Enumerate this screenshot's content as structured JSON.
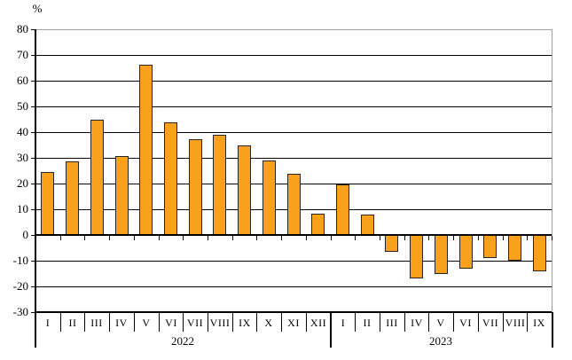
{
  "chart_data": {
    "type": "bar",
    "title": "",
    "ylabel": "%",
    "xlabel": "",
    "ylim": [
      -30,
      80
    ],
    "ytick_step": 10,
    "grid": true,
    "legend_position": "none",
    "bar_fill_color": "#F9A11B",
    "bar_border_color": "#262626",
    "gridline_color": "#000000",
    "plot_border_color": "#A0A0A0",
    "groups": [
      {
        "year": "2022",
        "categories": [
          "I",
          "II",
          "III",
          "IV",
          "V",
          "VI",
          "VII",
          "VIII",
          "IX",
          "X",
          "XI",
          "XII"
        ],
        "values": [
          24.6,
          28.7,
          44.8,
          30.8,
          66.2,
          43.8,
          37.2,
          38.9,
          34.7,
          28.9,
          23.7,
          8.3
        ]
      },
      {
        "year": "2023",
        "categories": [
          "I",
          "II",
          "III",
          "IV",
          "V",
          "VI",
          "VII",
          "VIII",
          "IX"
        ],
        "values": [
          19.8,
          7.9,
          -6.7,
          -16.8,
          -15.0,
          -13.1,
          -8.8,
          -10.0,
          -14.1
        ]
      }
    ]
  }
}
